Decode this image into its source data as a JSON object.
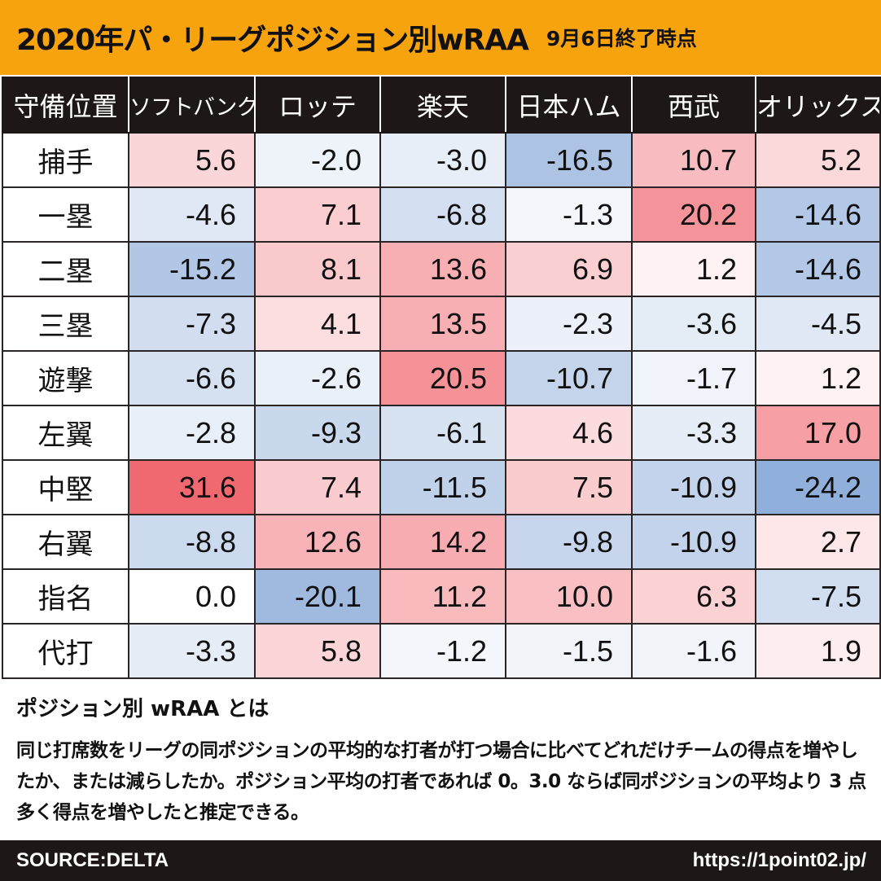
{
  "title": {
    "main": "2020年パ・リーグポジション別wRAA",
    "sub": "9月6日終了時点"
  },
  "colors": {
    "title_bg": "#f7a30e",
    "header_bg": "#1e1717",
    "positive_max": "#f06870",
    "negative_max": "#7ea2d4",
    "neutral": "#ffffff"
  },
  "chart_data": {
    "type": "heatmap",
    "corner_label": "守備位置",
    "columns": [
      "ソフトバンク",
      "ロッテ",
      "楽天",
      "日本ハム",
      "西武",
      "オリックス"
    ],
    "rows": [
      "捕手",
      "一塁",
      "二塁",
      "三塁",
      "遊撃",
      "左翼",
      "中堅",
      "右翼",
      "指名",
      "代打"
    ],
    "values": [
      [
        "5.6",
        "-2.0",
        "-3.0",
        "-16.5",
        "10.7",
        "5.2"
      ],
      [
        "-4.6",
        "7.1",
        "-6.8",
        "-1.3",
        "20.2",
        "-14.6"
      ],
      [
        "-15.2",
        "8.1",
        "13.6",
        "6.9",
        "1.2",
        "-14.6"
      ],
      [
        "-7.3",
        "4.1",
        "13.5",
        "-2.3",
        "-3.6",
        "-4.5"
      ],
      [
        "-6.6",
        "-2.6",
        "20.5",
        "-10.7",
        "-1.7",
        "1.2"
      ],
      [
        "-2.8",
        "-9.3",
        "-6.1",
        "4.6",
        "-3.3",
        "17.0"
      ],
      [
        "31.6",
        "7.4",
        "-11.5",
        "7.5",
        "-10.9",
        "-24.2"
      ],
      [
        "-8.8",
        "12.6",
        "14.2",
        "-9.8",
        "-10.9",
        "2.7"
      ],
      [
        "0.0",
        "-20.1",
        "11.2",
        "10.0",
        "6.3",
        "-7.5"
      ],
      [
        "-3.3",
        "5.8",
        "-1.2",
        "-1.5",
        "-1.6",
        "1.9"
      ]
    ],
    "color_scale": "diverging: red = positive, blue = negative, white = 0"
  },
  "description": {
    "heading": "ポジション別 wRAA とは",
    "body": "同じ打席数をリーグの同ポジションの平均的な打者が打つ場合に比べてどれだけチームの得点を増やしたか、または減らしたか。ポジション平均の打者であれば 0。3.0 ならば同ポジションの平均より 3 点多く得点を増やしたと推定できる。"
  },
  "footer": {
    "source": "SOURCE:DELTA",
    "url": "https://1point02.jp/"
  }
}
